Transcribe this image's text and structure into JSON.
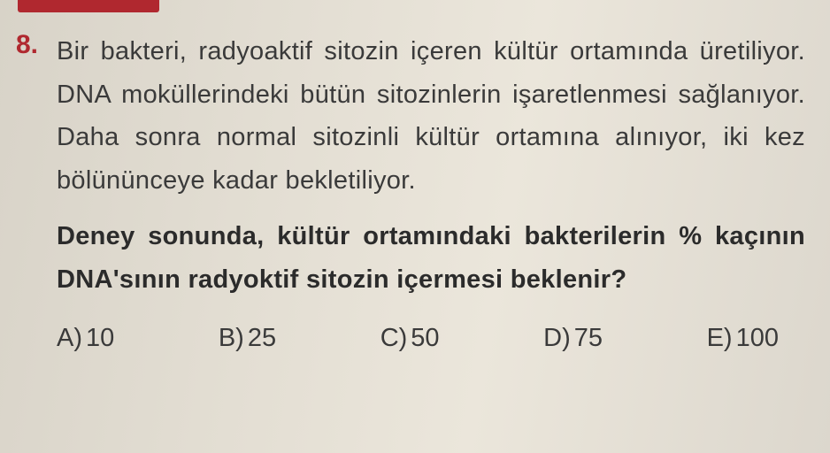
{
  "question": {
    "number": "8.",
    "number_color": "#b0282f",
    "stem": "Bir bakteri, radyoaktif sitozin içeren kültür ortamında üretiliyor. DNA moküllerindeki bütün sitozinlerin işaretlenmesi sağlanıyor. Daha sonra normal sitozinli kültür ortamına alınıyor, iki kez bölününceye kadar bekletiliyor.",
    "prompt": "Deney sonunda, kültür ortamındaki bakterilerin % kaçının DNA'sının radyoktif sitozin içermesi beklenir?",
    "stem_fontsize": 29,
    "prompt_fontsize": 29,
    "text_color": "#3a3a3a",
    "prompt_color": "#2b2b2b"
  },
  "choices": [
    {
      "label": "A)",
      "value": "10"
    },
    {
      "label": "B)",
      "value": "25"
    },
    {
      "label": "C)",
      "value": "50"
    },
    {
      "label": "D)",
      "value": "75"
    },
    {
      "label": "E)",
      "value": "100"
    }
  ],
  "page_style": {
    "background_gradient": [
      "#d8d3c8",
      "#e2ddd2",
      "#ebe6db",
      "#dcd7cd"
    ],
    "red_strip_color": "#b0282f",
    "font_family": "Arial"
  }
}
